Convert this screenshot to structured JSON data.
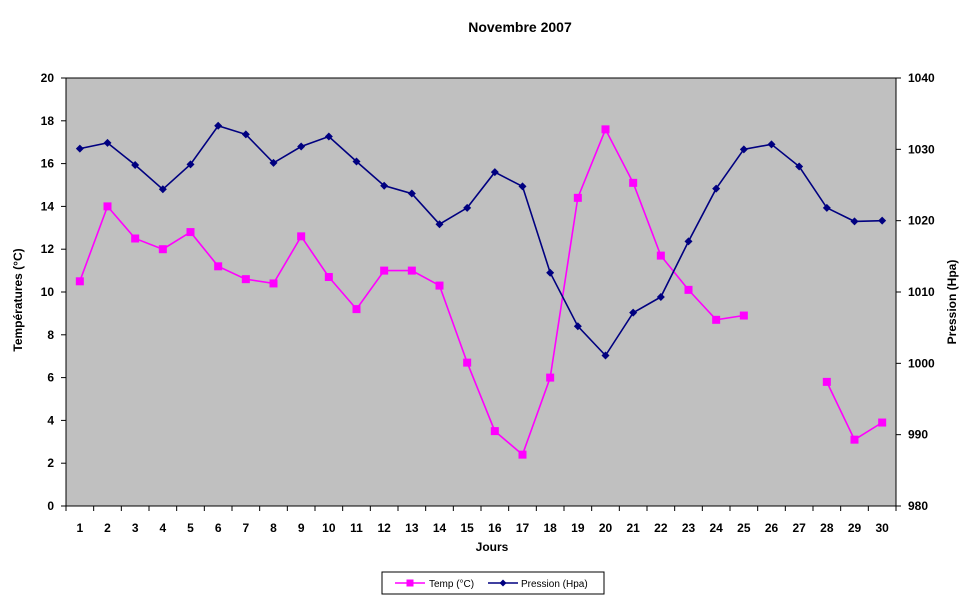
{
  "chart_data": {
    "type": "line",
    "title": "Novembre 2007",
    "xlabel": "Jours",
    "ylabel_left": "Températures (°C)",
    "ylabel_right": "Pression (Hpa)",
    "x": [
      1,
      2,
      3,
      4,
      5,
      6,
      7,
      8,
      9,
      10,
      11,
      12,
      13,
      14,
      15,
      16,
      17,
      18,
      19,
      20,
      21,
      22,
      23,
      24,
      25,
      26,
      27,
      28,
      29,
      30
    ],
    "ylim_left": [
      0,
      20
    ],
    "yticks_left": [
      0,
      2,
      4,
      6,
      8,
      10,
      12,
      14,
      16,
      18,
      20
    ],
    "ylim_right": [
      980,
      1040
    ],
    "yticks_right": [
      980,
      990,
      1000,
      1010,
      1020,
      1030,
      1040
    ],
    "grid": false,
    "legend_position": "bottom",
    "plot_background": "#c0c0c0",
    "series": [
      {
        "name": "Temp (°C)",
        "axis": "left",
        "color": "#ff00ff",
        "marker": "square",
        "values": [
          10.5,
          14.0,
          12.5,
          12.0,
          12.8,
          11.2,
          10.6,
          10.4,
          12.6,
          10.7,
          9.2,
          11.0,
          11.0,
          10.3,
          6.7,
          3.5,
          2.4,
          6.0,
          14.4,
          17.6,
          15.1,
          11.7,
          10.1,
          8.7,
          8.9,
          null,
          null,
          5.8,
          3.1,
          3.9
        ]
      },
      {
        "name": "Pression (Hpa)",
        "axis": "right",
        "color": "#000080",
        "marker": "diamond",
        "values": [
          1030.1,
          1030.9,
          1027.8,
          1024.4,
          1027.9,
          1033.3,
          1032.1,
          1028.1,
          1030.4,
          1031.8,
          1028.3,
          1024.9,
          1023.8,
          1019.5,
          1021.8,
          1026.8,
          1024.8,
          1012.7,
          1005.2,
          1001.1,
          1007.1,
          1009.3,
          1017.1,
          1024.5,
          1030.0,
          1030.7,
          1027.6,
          1021.8,
          1019.9,
          1020.0
        ]
      }
    ]
  }
}
